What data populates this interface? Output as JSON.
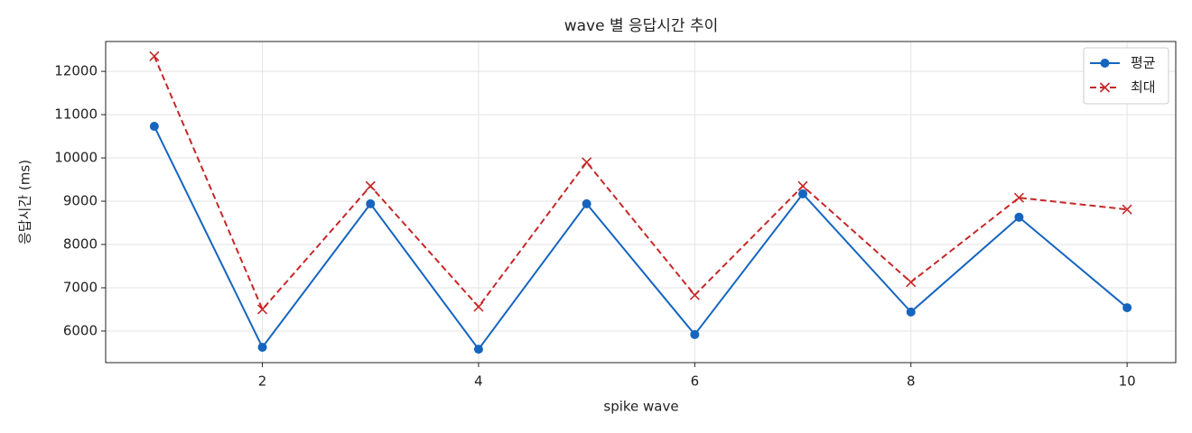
{
  "chart_data": {
    "type": "line",
    "title": "wave 별 응답시간 추이",
    "x_label": "spike wave",
    "y_label": "응답시간 (ms)",
    "x": [
      1,
      2,
      3,
      4,
      5,
      6,
      7,
      8,
      9,
      10
    ],
    "series": [
      {
        "name": "평균",
        "color": "#1565c0",
        "linestyle": "solid",
        "marker": "circle",
        "values": [
          10730,
          5625,
          8940,
          5580,
          8940,
          5920,
          9170,
          6440,
          8630,
          6540
        ]
      },
      {
        "name": "최대",
        "color": "#c62828",
        "linestyle": "dashed",
        "marker": "x",
        "values": [
          12350,
          6500,
          9350,
          6560,
          9900,
          6830,
          9350,
          7130,
          9080,
          8810
        ]
      }
    ],
    "xlim": [
      0.55,
      10.45
    ],
    "xticks": [
      2,
      4,
      6,
      8,
      10
    ],
    "ylim": [
      5270,
      12690
    ],
    "yticks": [
      6000,
      7000,
      8000,
      9000,
      10000,
      11000,
      12000
    ],
    "grid": true,
    "legend": "upper right"
  }
}
